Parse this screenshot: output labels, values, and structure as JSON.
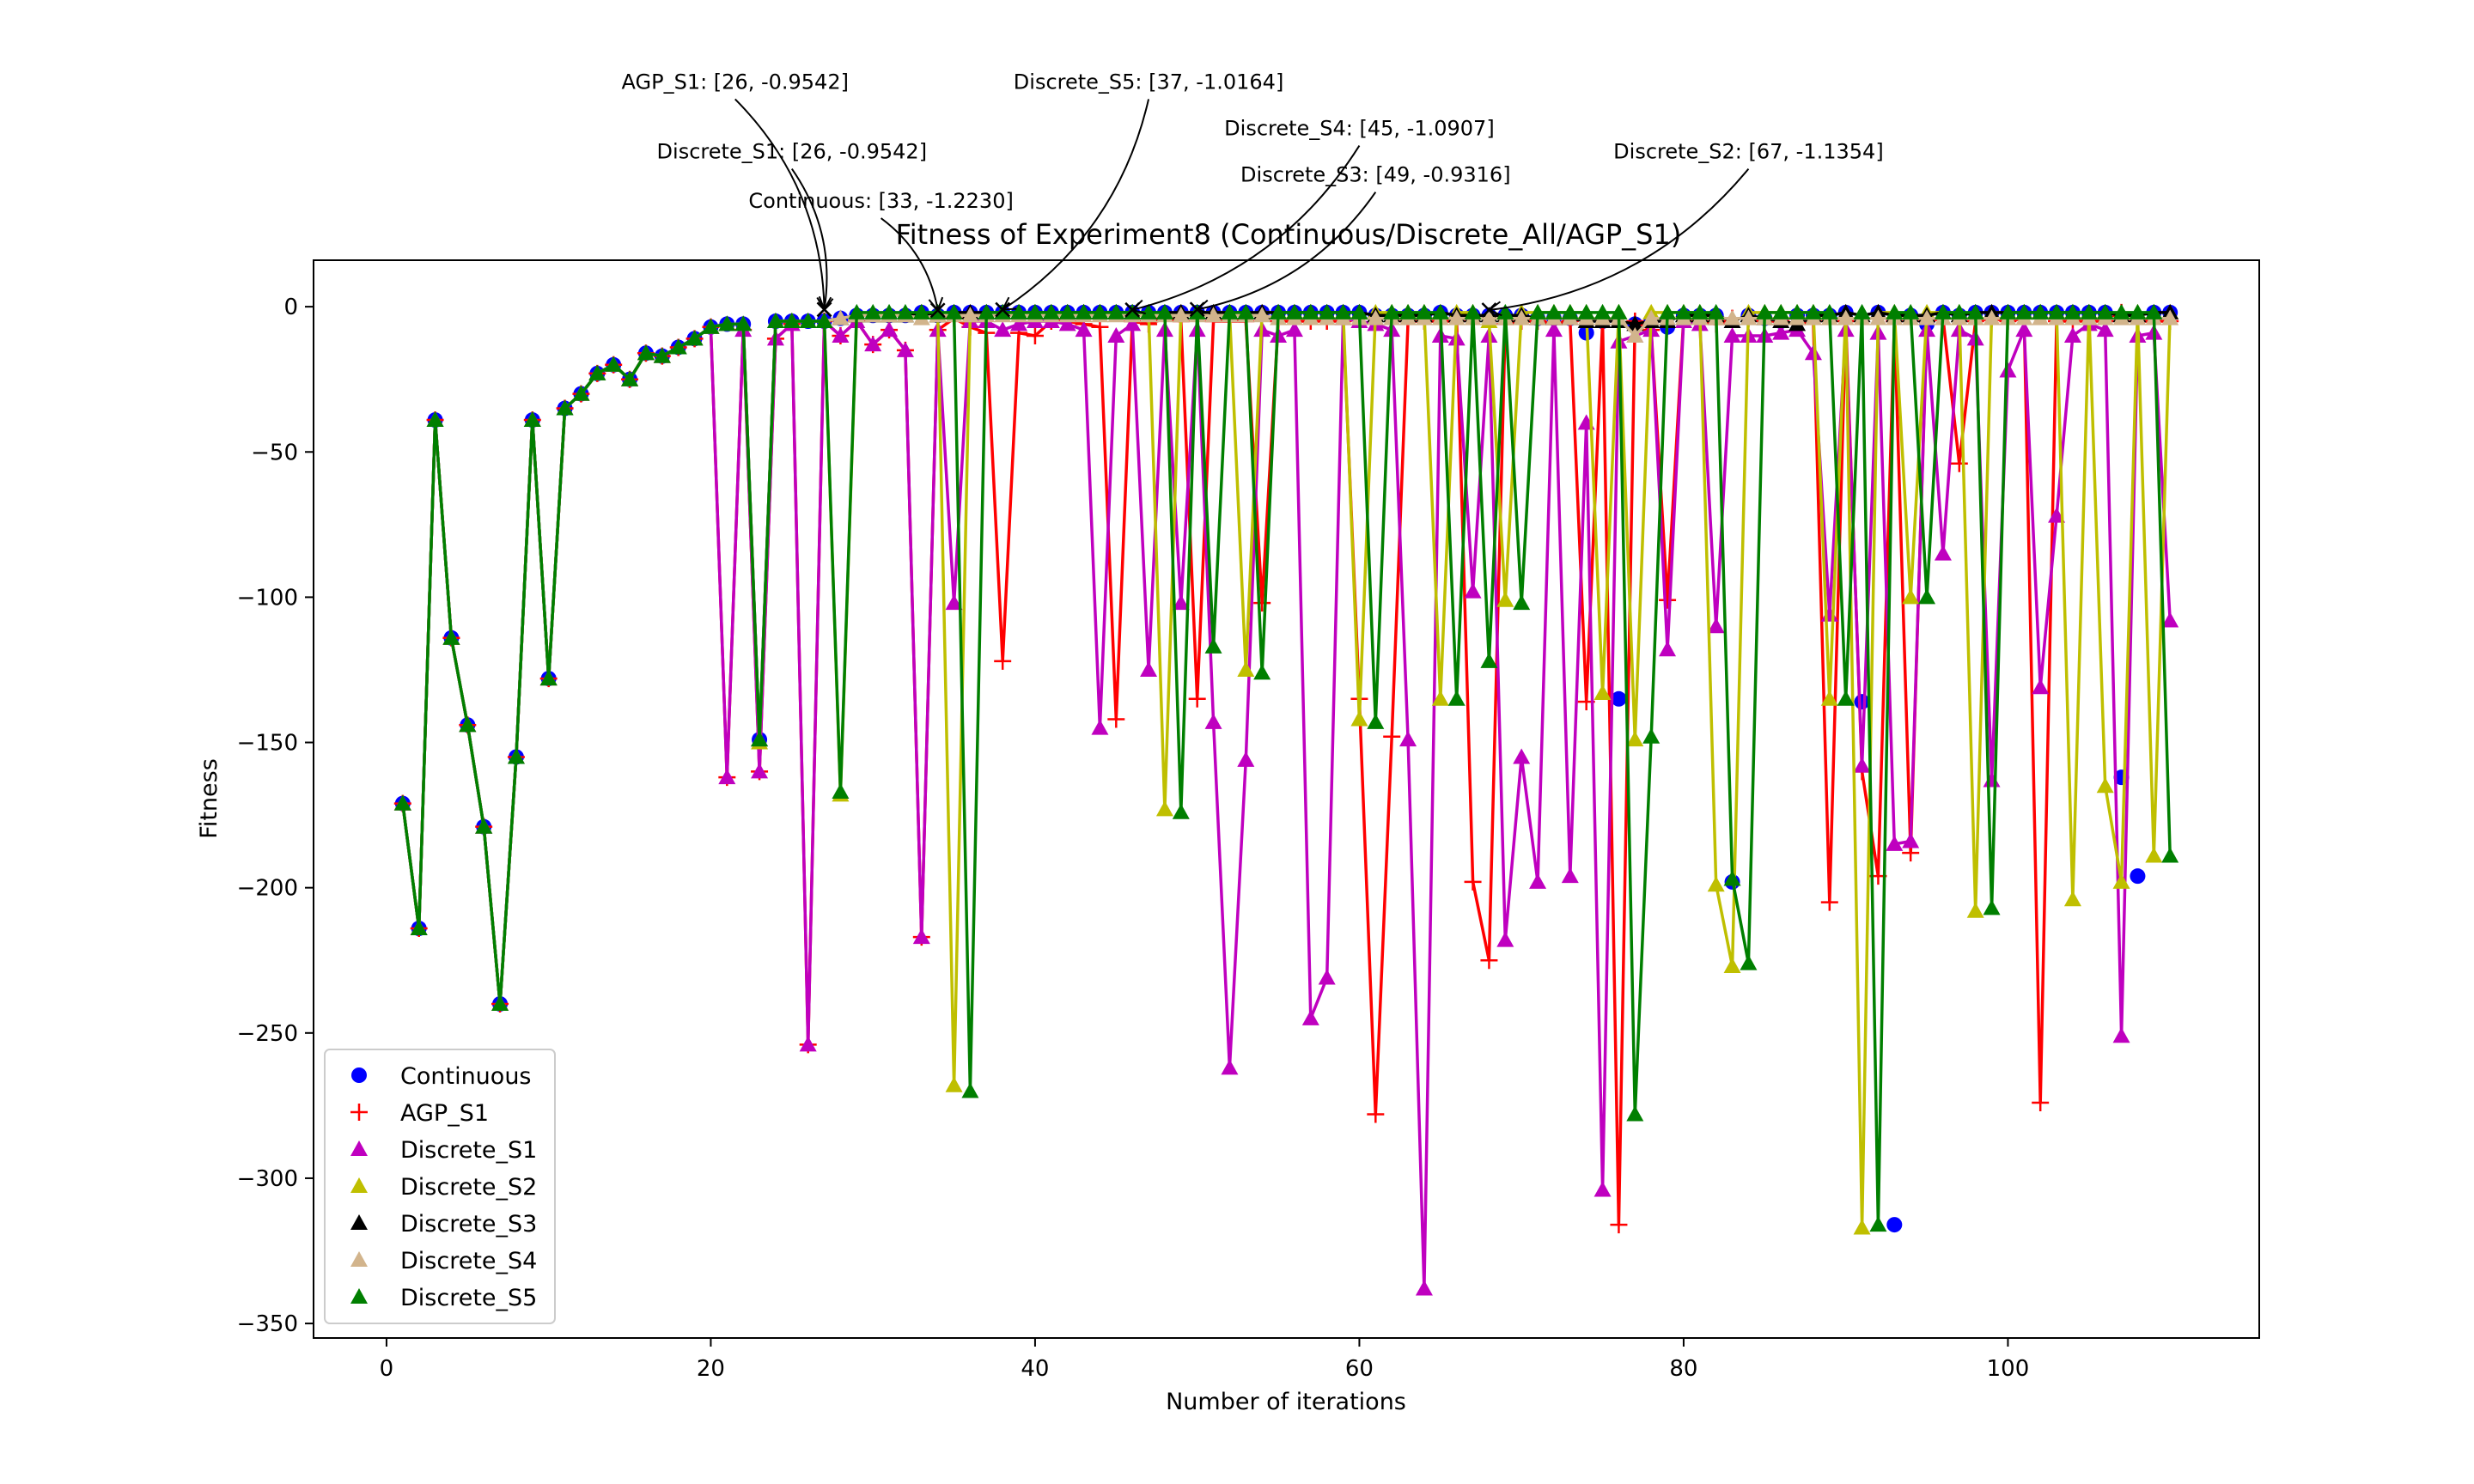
{
  "chart_data": {
    "type": "line",
    "title": "Fitness of Experiment8 (Continuous/Discrete_All/AGP_S1)",
    "xlabel": "Number of iterations",
    "ylabel": "Fitness",
    "xlim": [
      -4.5,
      115.5
    ],
    "ylim": [
      -355,
      16
    ],
    "xticks": [
      0,
      20,
      40,
      60,
      80,
      100
    ],
    "yticks": [
      0,
      -50,
      -100,
      -150,
      -200,
      -250,
      -300,
      -350
    ],
    "xtick_labels": [
      "0",
      "20",
      "40",
      "60",
      "80",
      "100"
    ],
    "ytick_labels": [
      "0",
      "−50",
      "−100",
      "−150",
      "−200",
      "−250",
      "−300",
      "−350"
    ],
    "grid": false,
    "legend_position": "lower-left",
    "iterations": [
      1,
      2,
      3,
      4,
      5,
      6,
      7,
      8,
      9,
      10,
      11,
      12,
      13,
      14,
      15,
      16,
      17,
      18,
      19,
      20,
      21,
      22,
      23,
      24,
      25,
      26,
      27,
      28,
      29,
      30,
      31,
      32,
      33,
      34,
      35,
      36,
      37,
      38,
      39,
      40,
      41,
      42,
      43,
      44,
      45,
      46,
      47,
      48,
      49,
      50,
      51,
      52,
      53,
      54,
      55,
      56,
      57,
      58,
      59,
      60,
      61,
      62,
      63,
      64,
      65,
      66,
      67,
      68,
      69,
      70,
      71,
      72,
      73,
      74,
      75,
      76,
      77,
      78,
      79,
      80,
      81,
      82,
      83,
      84,
      85,
      86,
      87,
      88,
      89,
      90,
      91,
      92,
      93,
      94,
      95,
      96,
      97,
      98,
      99,
      100,
      101,
      102,
      103,
      104,
      105,
      106,
      107,
      108,
      109,
      110
    ],
    "series": [
      {
        "name": "Continuous",
        "color": "#0000ff",
        "marker": "circle",
        "line": false,
        "values": [
          -171,
          -214,
          -39,
          -114,
          -144,
          -179,
          -240,
          -155,
          -39,
          -128,
          -35,
          -30,
          -23,
          -20,
          -25,
          -16,
          -17,
          -14,
          -11,
          -7,
          -6,
          -6,
          -149,
          -5,
          -5,
          -5,
          -5,
          -4,
          -3,
          -3,
          -3,
          -3,
          -2,
          -3,
          -2,
          -2,
          -2,
          -2,
          -2,
          -2,
          -2,
          -2,
          -2,
          -2,
          -2,
          -2,
          -2,
          -2,
          -2,
          -2,
          -2,
          -2,
          -2,
          -2,
          -2,
          -2,
          -2,
          -2,
          -2,
          -2,
          -3,
          -3,
          -3,
          -3,
          -2,
          -3,
          -3,
          -3,
          -3,
          -3,
          -4,
          -4,
          -4,
          -9,
          -5,
          -135,
          -6,
          -5,
          -7,
          -3,
          -3,
          -3,
          -198,
          -3,
          -4,
          -5,
          -3,
          -3,
          -3,
          -2,
          -136,
          -2,
          -316,
          -3,
          -6,
          -2,
          -3,
          -2,
          -2,
          -2,
          -2,
          -2,
          -2,
          -2,
          -2,
          -2,
          -162,
          -196,
          -2,
          -2
        ]
      },
      {
        "name": "AGP_S1",
        "color": "#ff0000",
        "marker": "plus",
        "line": true,
        "values": [
          -171,
          -214,
          -39,
          -114,
          -144,
          -179,
          -240,
          -155,
          -39,
          -128,
          -35,
          -30,
          -23,
          -20,
          -25,
          -16,
          -17,
          -14,
          -11,
          -7,
          -162,
          -8,
          -160,
          -11,
          -6,
          -254,
          -5,
          -10,
          -5,
          -13,
          -8,
          -15,
          -217,
          -8,
          -4,
          -7,
          -9,
          -122,
          -9,
          -10,
          -5,
          -5,
          -6,
          -7,
          -142,
          -5,
          -6,
          -4,
          -5,
          -135,
          -5,
          -5,
          -5,
          -102,
          -5,
          -5,
          -5,
          -5,
          -5,
          -135,
          -278,
          -148,
          -5,
          -5,
          -5,
          -5,
          -198,
          -225,
          -6,
          -5,
          -5,
          -6,
          -5,
          -136,
          -5,
          -316,
          -5,
          -8,
          -101,
          -4,
          -5,
          -6,
          -4,
          -4,
          -5,
          -5,
          -6,
          -5,
          -205,
          -5,
          -160,
          -196,
          -5,
          -188,
          -5,
          -4,
          -54,
          -5,
          -4,
          -5,
          -4,
          -274,
          -5,
          -5,
          -5,
          -5,
          -2,
          -5,
          -5,
          -5
        ]
      },
      {
        "name": "Discrete_S1",
        "color": "#bf00bf",
        "marker": "triangle",
        "line": true,
        "values": [
          -171,
          -214,
          -39,
          -114,
          -144,
          -179,
          -240,
          -155,
          -39,
          -128,
          -35,
          -30,
          -23,
          -20,
          -25,
          -16,
          -17,
          -14,
          -11,
          -7,
          -162,
          -8,
          -160,
          -11,
          -6,
          -254,
          -5,
          -10,
          -5,
          -13,
          -8,
          -15,
          -217,
          -8,
          -102,
          -5,
          -5,
          -8,
          -6,
          -5,
          -5,
          -6,
          -8,
          -145,
          -10,
          -6,
          -125,
          -8,
          -102,
          -8,
          -143,
          -262,
          -156,
          -8,
          -10,
          -8,
          -245,
          -231,
          -4,
          -5,
          -6,
          -8,
          -149,
          -338,
          -10,
          -11,
          -98,
          -10,
          -218,
          -155,
          -198,
          -8,
          -196,
          -40,
          -304,
          -12,
          -10,
          -8,
          -118,
          -5,
          -6,
          -110,
          -10,
          -10,
          -10,
          -9,
          -8,
          -16,
          -106,
          -8,
          -158,
          -9,
          -185,
          -184,
          -8,
          -85,
          -8,
          -11,
          -163,
          -22,
          -8,
          -131,
          -72,
          -10,
          -6,
          -8,
          -251,
          -10,
          -9,
          -108
        ]
      },
      {
        "name": "Discrete_S2",
        "color": "#bfbf00",
        "marker": "triangle",
        "line": true,
        "values": [
          -171,
          -214,
          -39,
          -114,
          -144,
          -179,
          -240,
          -155,
          -39,
          -128,
          -35,
          -30,
          -23,
          -20,
          -25,
          -16,
          -17,
          -14,
          -11,
          -7,
          -6,
          -6,
          -150,
          -5,
          -5,
          -5,
          -5,
          -168,
          -3,
          -3,
          -3,
          -3,
          -2,
          -3,
          -268,
          -3,
          -2,
          -2,
          -2,
          -2,
          -2,
          -2,
          -2,
          -2,
          -2,
          -2,
          -2,
          -173,
          -2,
          -2,
          -2,
          -2,
          -125,
          -2,
          -2,
          -2,
          -2,
          -2,
          -2,
          -142,
          -2,
          -2,
          -2,
          -2,
          -135,
          -2,
          -2,
          -5,
          -101,
          -2,
          -2,
          -2,
          -2,
          -2,
          -133,
          -2,
          -149,
          -2,
          -2,
          -2,
          -2,
          -199,
          -227,
          -2,
          -2,
          -2,
          -2,
          -2,
          -135,
          -2,
          -317,
          -2,
          -2,
          -100,
          -2,
          -2,
          -2,
          -208,
          -2,
          -2,
          -2,
          -2,
          -2,
          -204,
          -2,
          -165,
          -198,
          -2,
          -189,
          -2
        ]
      },
      {
        "name": "Discrete_S3",
        "color": "#000000",
        "marker": "triangle",
        "line": true,
        "values": [
          -171,
          -214,
          -39,
          -114,
          -144,
          -179,
          -240,
          -155,
          -39,
          -128,
          -35,
          -30,
          -23,
          -20,
          -25,
          -16,
          -17,
          -14,
          -11,
          -7,
          -6,
          -6,
          -149,
          -5,
          -5,
          -5,
          -5,
          -4,
          -3,
          -3,
          -3,
          -3,
          -2,
          -3,
          -2,
          -2,
          -2,
          -2,
          -2,
          -2,
          -2,
          -2,
          -2,
          -2,
          -2,
          -2,
          -2,
          -2,
          -2,
          -2,
          -2,
          -2,
          -2,
          -2,
          -2,
          -2,
          -2,
          -2,
          -2,
          -2,
          -3,
          -3,
          -3,
          -3,
          -2,
          -3,
          -3,
          -3,
          -3,
          -3,
          -4,
          -4,
          -4,
          -5,
          -5,
          -5,
          -6,
          -5,
          -5,
          -3,
          -3,
          -3,
          -5,
          -3,
          -4,
          -5,
          -6,
          -3,
          -3,
          -2,
          -3,
          -2,
          -3,
          -3,
          -3,
          -2,
          -3,
          -2,
          -2,
          -2,
          -2,
          -2,
          -2,
          -2,
          -2,
          -2,
          -3,
          -3,
          -2,
          -2
        ]
      },
      {
        "name": "Discrete_S4",
        "color": "#d2b48c",
        "marker": "triangle",
        "line": true,
        "values": [
          -171,
          -214,
          -39,
          -114,
          -144,
          -179,
          -240,
          -155,
          -39,
          -128,
          -35,
          -30,
          -23,
          -20,
          -25,
          -16,
          -17,
          -14,
          -11,
          -7,
          -6,
          -6,
          -149,
          -5,
          -5,
          -5,
          -5,
          -4,
          -3,
          -3,
          -3,
          -3,
          -4,
          -3,
          -3,
          -3,
          -3,
          -3,
          -3,
          -3,
          -3,
          -3,
          -3,
          -3,
          -3,
          -3,
          -3,
          -3,
          -3,
          -3,
          -3,
          -3,
          -3,
          -3,
          -4,
          -4,
          -4,
          -4,
          -4,
          -4,
          -4,
          -4,
          -4,
          -4,
          -4,
          -4,
          -4,
          -4,
          -4,
          -4,
          -4,
          -4,
          -4,
          -4,
          -4,
          -4,
          -10,
          -4,
          -4,
          -4,
          -4,
          -4,
          -4,
          -4,
          -4,
          -4,
          -4,
          -4,
          -4,
          -4,
          -4,
          -4,
          -4,
          -4,
          -4,
          -4,
          -4,
          -4,
          -4,
          -4,
          -4,
          -4,
          -4,
          -4,
          -4,
          -4,
          -4,
          -4,
          -4,
          -4
        ]
      },
      {
        "name": "Discrete_S5",
        "color": "#007f00",
        "marker": "triangle",
        "line": true,
        "values": [
          -171,
          -214,
          -39,
          -114,
          -144,
          -179,
          -240,
          -155,
          -39,
          -128,
          -35,
          -30,
          -23,
          -20,
          -25,
          -16,
          -17,
          -14,
          -11,
          -7,
          -6,
          -6,
          -149,
          -5,
          -5,
          -5,
          -5,
          -167,
          -2,
          -2,
          -2,
          -2,
          -2,
          -2,
          -2,
          -270,
          -2,
          -2,
          -2,
          -2,
          -2,
          -2,
          -2,
          -2,
          -2,
          -2,
          -2,
          -2,
          -174,
          -2,
          -117,
          -2,
          -2,
          -126,
          -2,
          -2,
          -2,
          -2,
          -2,
          -2,
          -143,
          -2,
          -2,
          -2,
          -2,
          -135,
          -2,
          -122,
          -2,
          -102,
          -2,
          -2,
          -2,
          -2,
          -2,
          -2,
          -278,
          -148,
          -2,
          -2,
          -2,
          -2,
          -197,
          -226,
          -2,
          -2,
          -2,
          -2,
          -2,
          -135,
          -2,
          -316,
          -2,
          -2,
          -100,
          -2,
          -2,
          -2,
          -207,
          -2,
          -2,
          -2,
          -2,
          -2,
          -2,
          -2,
          -2,
          -2,
          -2,
          -189
        ]
      }
    ],
    "annotations": [
      {
        "text": "AGP_S1: [26, -0.9542]",
        "target": [
          27,
          -0.9542
        ],
        "text_anchor": [
          21.5,
          75
        ],
        "rad": 0.2
      },
      {
        "text": "Discrete_S1: [26, -0.9542]",
        "target": [
          27,
          -0.9542
        ],
        "text_anchor": [
          25.0,
          51
        ],
        "rad": 0.2
      },
      {
        "text": "Continuous: [33, -1.2230]",
        "target": [
          34,
          -1.223
        ],
        "text_anchor": [
          30.5,
          34
        ],
        "rad": 0.2
      },
      {
        "text": "Discrete_S5: [37, -1.0164]",
        "target": [
          38,
          -1.0164
        ],
        "text_anchor": [
          47.0,
          75
        ],
        "rad": 0.2
      },
      {
        "text": "Discrete_S4: [45, -1.0907]",
        "target": [
          46,
          -1.0907
        ],
        "text_anchor": [
          60.0,
          59
        ],
        "rad": 0.2
      },
      {
        "text": "Discrete_S3: [49, -0.9316]",
        "target": [
          50,
          -0.9316
        ],
        "text_anchor": [
          61.0,
          43
        ],
        "rad": 0.2
      },
      {
        "text": "Discrete_S2: [67, -1.1354]",
        "target": [
          68,
          -1.1354
        ],
        "text_anchor": [
          84.0,
          51
        ],
        "rad": 0.2
      }
    ]
  }
}
